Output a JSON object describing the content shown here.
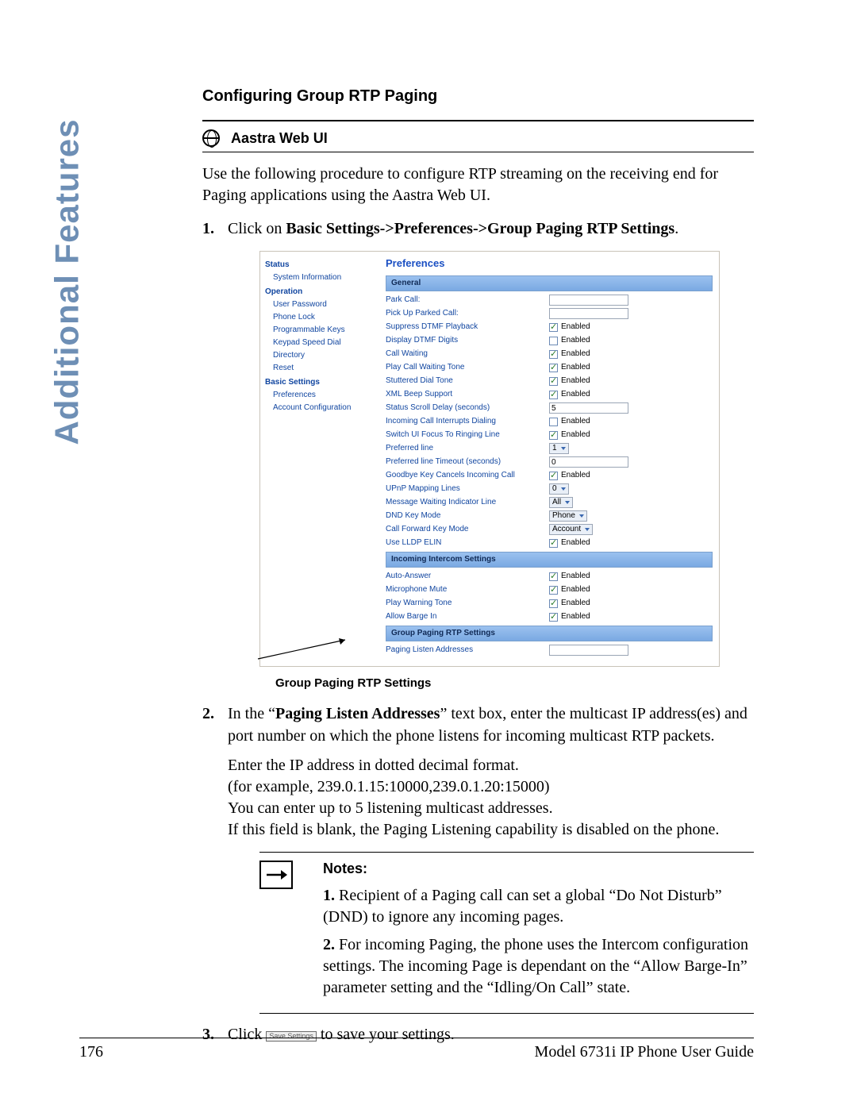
{
  "sideTab": "Additional Features",
  "sectionTitle": "Configuring Group RTP Paging",
  "webuiLabel": "Aastra Web UI",
  "intro": "Use the following procedure to configure RTP streaming on the receiving end for Paging applications using the Aastra Web UI.",
  "step1_prefix": "Click on ",
  "step1_bold": "Basic Settings->Preferences->Group Paging RTP Settings",
  "step1_suffix": ".",
  "mock": {
    "nav": {
      "status": "Status",
      "statusItems": [
        "System Information"
      ],
      "operation": "Operation",
      "operationItems": [
        "User Password",
        "Phone Lock",
        "Programmable Keys",
        "Keypad Speed Dial",
        "Directory",
        "Reset"
      ],
      "basic": "Basic Settings",
      "basicItems": [
        "Preferences",
        "Account Configuration"
      ]
    },
    "prefsTitle": "Preferences",
    "sections": {
      "general": "General",
      "generalRows": [
        {
          "label": "Park Call:",
          "type": "input",
          "value": ""
        },
        {
          "label": "Pick Up Parked Call:",
          "type": "input",
          "value": ""
        },
        {
          "label": "Suppress DTMF Playback",
          "type": "check",
          "checked": true,
          "text": "Enabled"
        },
        {
          "label": "Display DTMF Digits",
          "type": "check",
          "checked": false,
          "text": "Enabled"
        },
        {
          "label": "Call Waiting",
          "type": "check",
          "checked": true,
          "text": "Enabled"
        },
        {
          "label": "Play Call Waiting Tone",
          "type": "check",
          "checked": true,
          "text": "Enabled"
        },
        {
          "label": "Stuttered Dial Tone",
          "type": "check",
          "checked": true,
          "text": "Enabled"
        },
        {
          "label": "XML Beep Support",
          "type": "check",
          "checked": true,
          "text": "Enabled"
        },
        {
          "label": "Status Scroll Delay (seconds)",
          "type": "input",
          "value": "5"
        },
        {
          "label": "Incoming Call Interrupts Dialing",
          "type": "check",
          "checked": false,
          "text": "Enabled"
        },
        {
          "label": "Switch UI Focus To Ringing Line",
          "type": "check",
          "checked": true,
          "text": "Enabled"
        },
        {
          "label": "Preferred line",
          "type": "select",
          "value": "1"
        },
        {
          "label": "Preferred line Timeout (seconds)",
          "type": "input",
          "value": "0"
        },
        {
          "label": "Goodbye Key Cancels Incoming Call",
          "type": "check",
          "checked": true,
          "text": "Enabled"
        },
        {
          "label": "UPnP Mapping Lines",
          "type": "select",
          "value": "0"
        },
        {
          "label": "Message Waiting Indicator Line",
          "type": "select",
          "value": "All"
        },
        {
          "label": "DND Key Mode",
          "type": "select",
          "value": "Phone"
        },
        {
          "label": "Call Forward Key Mode",
          "type": "select",
          "value": "Account"
        },
        {
          "label": "Use LLDP ELIN",
          "type": "check",
          "checked": true,
          "text": "Enabled"
        }
      ],
      "intercom": "Incoming Intercom Settings",
      "intercomRows": [
        {
          "label": "Auto-Answer",
          "type": "check",
          "checked": true,
          "text": "Enabled"
        },
        {
          "label": "Microphone Mute",
          "type": "check",
          "checked": true,
          "text": "Enabled"
        },
        {
          "label": "Play Warning Tone",
          "type": "check",
          "checked": true,
          "text": "Enabled"
        },
        {
          "label": "Allow Barge In",
          "type": "check",
          "checked": true,
          "text": "Enabled"
        }
      ],
      "grp": "Group Paging RTP Settings",
      "grpRows": [
        {
          "label": "Paging Listen Addresses",
          "type": "input",
          "value": ""
        }
      ]
    }
  },
  "mockCaption": "Group Paging RTP Settings",
  "step2_a": "In the “",
  "step2_bold": "Paging Listen Addresses",
  "step2_b": "” text box, enter the multicast IP address(es) and port number on which the phone listens for incoming multicast RTP packets.",
  "step2_sub": [
    "Enter the IP address in dotted decimal format.",
    "(for example, 239.0.1.15:10000,239.0.1.20:15000)",
    "You can enter up to 5 listening multicast addresses.",
    "If this field is blank, the Paging Listening capability is disabled on the phone."
  ],
  "notesTitle": "Notes:",
  "note1_num": "1.",
  "note1": " Recipient of a Paging call can set a global “Do Not Disturb” (DND) to ignore any incoming pages.",
  "note2_num": "2.",
  "note2": " For incoming Paging, the phone uses the Intercom configuration settings. The incoming Page is dependant on the “Allow Barge-In” parameter setting and the “Idling/On Call” state.",
  "step3_a": "Click ",
  "step3_btn": "Save Settings",
  "step3_b": " to save your settings.",
  "footer": {
    "page": "176",
    "title": "Model 6731i IP Phone User Guide"
  }
}
